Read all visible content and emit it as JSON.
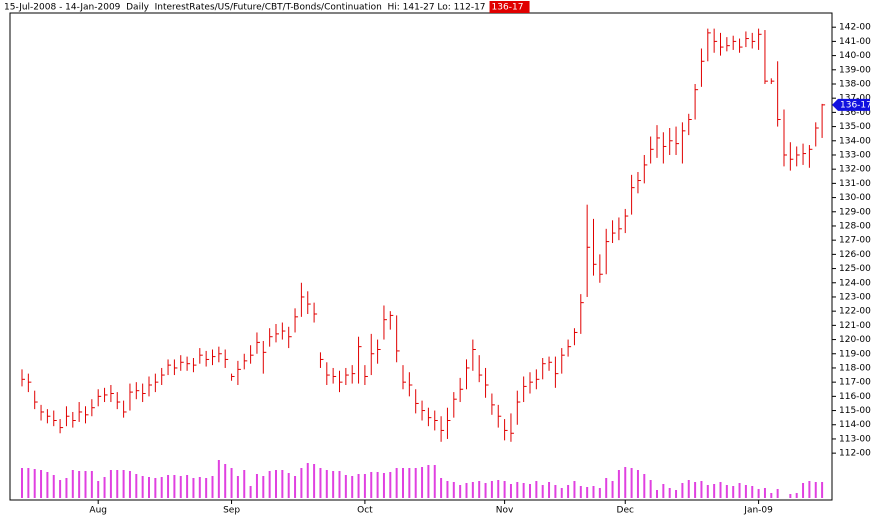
{
  "chart_data": {
    "type": "hlc",
    "title": "15-Jul-2008 - 14-Jan-2009  Daily  InterestRates/US/Future/CBT/T-Bonds/Continuation  Hi: 141-27 Lo: 112-17",
    "last_label": "136-17",
    "color": "#e00000",
    "volume_color": "#e040e0",
    "last_color": "#1010e0",
    "categories": [
      null,
      null,
      null,
      null,
      null,
      null,
      null,
      null,
      null,
      null,
      null,
      null,
      "Aug",
      null,
      null,
      null,
      null,
      null,
      null,
      null,
      null,
      null,
      null,
      null,
      null,
      null,
      null,
      null,
      null,
      null,
      null,
      null,
      null,
      "Sep",
      null,
      null,
      null,
      null,
      null,
      null,
      null,
      null,
      null,
      null,
      null,
      null,
      null,
      null,
      null,
      null,
      null,
      null,
      null,
      null,
      "Oct",
      null,
      null,
      null,
      null,
      null,
      null,
      null,
      null,
      null,
      null,
      null,
      null,
      null,
      null,
      null,
      null,
      null,
      null,
      null,
      null,
      null,
      "Nov",
      null,
      null,
      null,
      null,
      null,
      null,
      null,
      null,
      null,
      null,
      null,
      null,
      null,
      null,
      null,
      null,
      null,
      null,
      "Dec",
      null,
      null,
      null,
      null,
      null,
      null,
      null,
      null,
      null,
      null,
      null,
      null,
      null,
      null,
      null,
      null,
      null,
      null,
      null,
      null,
      "Jan-09",
      null,
      null,
      null,
      null,
      null,
      null,
      null,
      null,
      null,
      null
    ],
    "high": [
      117.9,
      117.6,
      116.4,
      115.4,
      115.1,
      115.0,
      114.4,
      115.3,
      114.9,
      115.6,
      115.3,
      115.8,
      116.5,
      116.6,
      116.8,
      116.3,
      115.7,
      116.9,
      117.0,
      116.9,
      117.4,
      117.6,
      118.0,
      118.6,
      118.6,
      118.9,
      118.8,
      118.7,
      119.4,
      119.2,
      119.3,
      119.5,
      119.3,
      117.6,
      118.5,
      119.0,
      119.6,
      120.5,
      119.9,
      120.8,
      121.1,
      121.2,
      120.9,
      122.2,
      124.0,
      123.4,
      122.6,
      119.1,
      118.4,
      118.0,
      117.8,
      118.0,
      118.2,
      120.2,
      118.2,
      120.4,
      120.0,
      122.4,
      122.0,
      121.7,
      118.2,
      117.7,
      116.5,
      115.7,
      115.2,
      115.0,
      114.6,
      115.2,
      116.3,
      117.3,
      118.6,
      120.0,
      118.9,
      118.0,
      116.2,
      115.4,
      114.4,
      114.8,
      116.4,
      117.4,
      117.7,
      117.9,
      118.7,
      118.8,
      118.8,
      119.4,
      120.0,
      120.8,
      123.2,
      129.5,
      128.5,
      126.0,
      127.8,
      128.4,
      128.6,
      129.2,
      131.6,
      131.8,
      133.0,
      134.3,
      135.1,
      134.6,
      134.9,
      135.0,
      135.3,
      135.9,
      138.0,
      140.5,
      141.9,
      141.9,
      141.6,
      141.3,
      141.4,
      141.2,
      141.7,
      141.6,
      141.9,
      141.8,
      138.4,
      139.6,
      136.2,
      133.9,
      133.6,
      133.8,
      133.7,
      135.3,
      136.6
    ],
    "low": [
      116.7,
      116.3,
      115.1,
      114.3,
      114.1,
      113.9,
      113.4,
      113.9,
      113.8,
      114.2,
      114.1,
      114.6,
      115.3,
      115.6,
      115.6,
      115.1,
      114.5,
      115.0,
      115.8,
      115.6,
      116.0,
      116.3,
      116.8,
      117.5,
      117.5,
      117.8,
      117.8,
      117.7,
      118.3,
      118.1,
      118.2,
      118.4,
      118.0,
      117.1,
      116.8,
      117.9,
      118.3,
      119.0,
      117.6,
      119.5,
      119.8,
      120.0,
      119.4,
      120.5,
      121.6,
      121.8,
      121.2,
      118.0,
      116.8,
      116.9,
      116.3,
      116.8,
      116.9,
      116.9,
      116.8,
      117.5,
      118.3,
      120.0,
      120.7,
      118.4,
      116.5,
      116.0,
      114.8,
      114.3,
      113.9,
      113.6,
      112.8,
      113.0,
      114.5,
      115.6,
      116.5,
      117.8,
      117.0,
      115.9,
      114.7,
      113.8,
      112.9,
      112.8,
      114.0,
      115.6,
      116.2,
      116.5,
      117.2,
      117.8,
      116.6,
      117.6,
      118.8,
      119.6,
      120.4,
      123.0,
      124.5,
      124.0,
      124.6,
      126.8,
      127.0,
      127.5,
      128.8,
      130.3,
      131.0,
      132.4,
      132.8,
      132.4,
      133.0,
      133.0,
      132.4,
      134.4,
      135.5,
      137.8,
      139.6,
      140.2,
      140.0,
      140.3,
      140.4,
      140.2,
      140.6,
      140.5,
      140.4,
      138.0,
      138.0,
      135.0,
      132.2,
      131.9,
      132.2,
      132.3,
      132.1,
      133.6,
      134.2
    ],
    "close": [
      117.2,
      117.0,
      115.6,
      114.9,
      114.6,
      114.3,
      113.8,
      114.6,
      114.3,
      114.9,
      114.7,
      115.2,
      116.0,
      116.1,
      116.2,
      115.6,
      114.9,
      116.3,
      116.4,
      116.2,
      116.8,
      117.0,
      117.5,
      118.2,
      118.0,
      118.4,
      118.3,
      118.2,
      118.9,
      118.6,
      118.8,
      119.0,
      118.6,
      117.4,
      117.9,
      118.5,
      118.9,
      119.8,
      119.1,
      120.2,
      120.4,
      120.6,
      120.2,
      121.6,
      123.0,
      122.5,
      121.8,
      118.6,
      117.5,
      117.4,
      117.0,
      117.5,
      117.6,
      119.5,
      117.4,
      119.0,
      119.3,
      121.4,
      121.7,
      119.2,
      117.0,
      116.8,
      115.5,
      115.0,
      114.5,
      114.3,
      113.6,
      114.3,
      115.8,
      116.5,
      118.0,
      119.3,
      117.5,
      116.8,
      115.4,
      114.6,
      113.6,
      113.4,
      115.6,
      116.7,
      117.0,
      117.2,
      118.3,
      118.4,
      117.6,
      118.9,
      119.5,
      120.5,
      122.6,
      126.5,
      125.3,
      124.6,
      126.9,
      127.5,
      127.8,
      128.7,
      130.7,
      131.2,
      132.3,
      133.4,
      134.2,
      133.6,
      134.0,
      133.8,
      134.7,
      135.5,
      137.6,
      139.6,
      141.6,
      141.0,
      140.6,
      140.7,
      141.0,
      140.6,
      141.2,
      141.0,
      141.5,
      138.2,
      138.2,
      135.5,
      133.0,
      132.7,
      133.0,
      133.1,
      133.4,
      134.9,
      136.53
    ],
    "volume": [
      30,
      30,
      29,
      28,
      26,
      23,
      18,
      20,
      28,
      27,
      27,
      27,
      17,
      21,
      28,
      28,
      28,
      27,
      24,
      22,
      21,
      20,
      21,
      23,
      23,
      22,
      23,
      20,
      21,
      20,
      22,
      38,
      34,
      30,
      22,
      28,
      12,
      24,
      22,
      27,
      28,
      28,
      25,
      22,
      30,
      35,
      34,
      30,
      28,
      27,
      27,
      23,
      22,
      24,
      24,
      26,
      26,
      25,
      26,
      30,
      30,
      30,
      30,
      31,
      33,
      33,
      20,
      17,
      16,
      13,
      15,
      16,
      17,
      15,
      17,
      18,
      17,
      14,
      16,
      15,
      14,
      17,
      13,
      16,
      13,
      10,
      13,
      17,
      12,
      11,
      12,
      10,
      20,
      17,
      28,
      31,
      30,
      28,
      24,
      18,
      8,
      14,
      10,
      8,
      15,
      18,
      16,
      17,
      13,
      14,
      16,
      13,
      12,
      15,
      13,
      12,
      9,
      10,
      5,
      9,
      0,
      4,
      5,
      15,
      17,
      16,
      16
    ],
    "volume_lim": [
      0,
      50
    ],
    "ylim": [
      108.7,
      143
    ],
    "yticks": [
      {
        "value": 112,
        "label": "112-00"
      },
      {
        "value": 113,
        "label": "113-00"
      },
      {
        "value": 114,
        "label": "114-00"
      },
      {
        "value": 115,
        "label": "115-00"
      },
      {
        "value": 116,
        "label": "116-00"
      },
      {
        "value": 117,
        "label": "117-00"
      },
      {
        "value": 118,
        "label": "118-00"
      },
      {
        "value": 119,
        "label": "119-00"
      },
      {
        "value": 120,
        "label": "120-00"
      },
      {
        "value": 121,
        "label": "121-00"
      },
      {
        "value": 122,
        "label": "122-00"
      },
      {
        "value": 123,
        "label": "123-00"
      },
      {
        "value": 124,
        "label": "124-00"
      },
      {
        "value": 125,
        "label": "125-00"
      },
      {
        "value": 126,
        "label": "126-00"
      },
      {
        "value": 127,
        "label": "127-00"
      },
      {
        "value": 128,
        "label": "128-00"
      },
      {
        "value": 129,
        "label": "129-00"
      },
      {
        "value": 130,
        "label": "130-00"
      },
      {
        "value": 131,
        "label": "131-00"
      },
      {
        "value": 132,
        "label": "132-00"
      },
      {
        "value": 133,
        "label": "133-00"
      },
      {
        "value": 134,
        "label": "134-00"
      },
      {
        "value": 135,
        "label": "135-00"
      },
      {
        "value": 136,
        "label": "136-00"
      },
      {
        "value": 137,
        "label": "137-00"
      },
      {
        "value": 138,
        "label": "138-00"
      },
      {
        "value": 139,
        "label": "139-00"
      },
      {
        "value": 140,
        "label": "140-00"
      },
      {
        "value": 141,
        "label": "141-00"
      },
      {
        "value": 142,
        "label": "142-00"
      }
    ]
  }
}
